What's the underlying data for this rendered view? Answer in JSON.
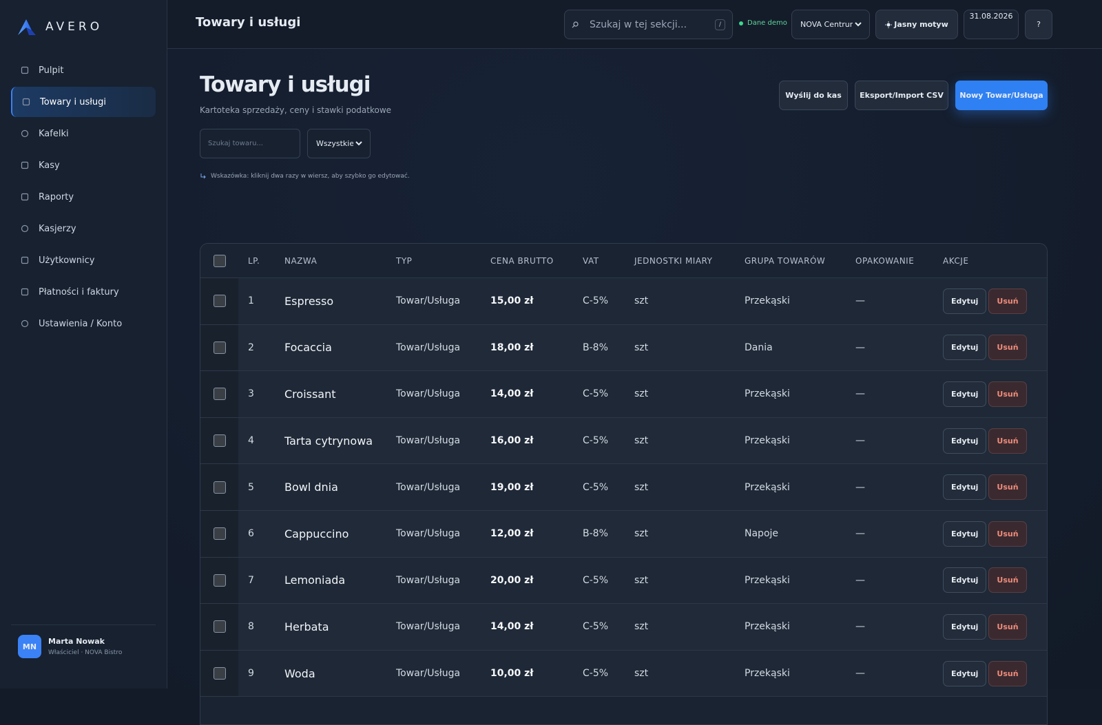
{
  "sidebar": {
    "brand": "AVERO",
    "nav": [
      "Pulpit",
      "Towary i usługi",
      "Kafelki",
      "Kasy",
      "Raporty",
      "Kasjerzy",
      "Użytkownicy",
      "Płatności i faktury",
      "Ustawienia / Konto"
    ],
    "active": 1,
    "user": {
      "initials": "MN",
      "name": "Marta Nowak",
      "role": "Właściciel · NOVA Bistro"
    }
  },
  "topbar": {
    "title": "Towary i usługi",
    "search_placeholder": "Szukaj w tej sekcji...",
    "search_key": "/",
    "demo": "Dane demo",
    "location": "NOVA Centrum",
    "theme": "Jasny motyw",
    "date": "31.08.2026",
    "help": "?"
  },
  "header": {
    "title": "Towary i usługi",
    "subtitle": "Kartoteka sprzedaży, ceny i stawki podatkowe",
    "actions": [
      "Wyślij do kas",
      "Eksport/Import CSV",
      "Nowy Towar/Usługa"
    ],
    "filter_placeholder": "Szukaj towaru...",
    "filter_select": "Wszystkie",
    "hint": "Wskazówka: kliknij dwa razy w wiersz, aby szybko go edytować."
  },
  "table": {
    "columns": [
      "LP.",
      "NAZWA",
      "TYP",
      "CENA BRUTTO",
      "VAT",
      "JEDNOSTKI MIARY",
      "GRUPA TOWARÓW",
      "OPAKOWANIE",
      "AKCJE"
    ],
    "rows": [
      [
        1,
        "Espresso",
        "Towar/Usługa",
        "15,00 zł",
        "C-5%",
        "szt",
        "Przekąski",
        "—"
      ],
      [
        2,
        "Focaccia",
        "Towar/Usługa",
        "18,00 zł",
        "B-8%",
        "szt",
        "Dania",
        "—"
      ],
      [
        3,
        "Croissant",
        "Towar/Usługa",
        "14,00 zł",
        "C-5%",
        "szt",
        "Przekąski",
        "—"
      ],
      [
        4,
        "Tarta cytrynowa",
        "Towar/Usługa",
        "16,00 zł",
        "C-5%",
        "szt",
        "Przekąski",
        "—"
      ],
      [
        5,
        "Bowl dnia",
        "Towar/Usługa",
        "19,00 zł",
        "C-5%",
        "szt",
        "Przekąski",
        "—"
      ],
      [
        6,
        "Cappuccino",
        "Towar/Usługa",
        "12,00 zł",
        "B-8%",
        "szt",
        "Napoje",
        "—"
      ],
      [
        7,
        "Lemoniada",
        "Towar/Usługa",
        "20,00 zł",
        "C-5%",
        "szt",
        "Przekąski",
        "—"
      ],
      [
        8,
        "Herbata",
        "Towar/Usługa",
        "14,00 zł",
        "C-5%",
        "szt",
        "Przekąski",
        "—"
      ],
      [
        9,
        "Woda",
        "Towar/Usługa",
        "10,00 zł",
        "C-5%",
        "szt",
        "Przekąski",
        "—"
      ]
    ],
    "row_actions": [
      "Edytuj",
      "Usuń"
    ]
  }
}
